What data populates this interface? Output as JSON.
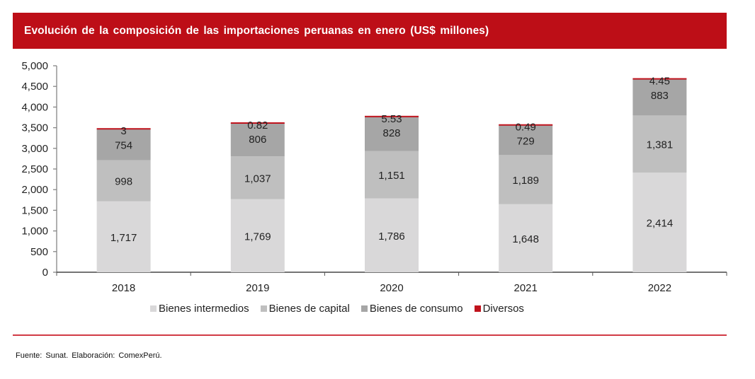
{
  "header": {
    "title": "Evolución de la composición de las importaciones peruanas en enero (US$ millones)"
  },
  "colors": {
    "header_bg": "#bd0e17",
    "bienes_intermedios": "#d9d8d9",
    "bienes_capital": "#bfbfbf",
    "bienes_consumo": "#a6a6a6",
    "diversos": "#c0121c",
    "footer_line": "#d13a45"
  },
  "chart_data": {
    "type": "bar",
    "stacked": true,
    "title": "Evolución de la composición de las importaciones peruanas en enero (US$ millones)",
    "xlabel": "",
    "ylabel": "",
    "categories": [
      "2018",
      "2019",
      "2020",
      "2021",
      "2022"
    ],
    "ylim": [
      0,
      5000
    ],
    "yticks": [
      0,
      500,
      1000,
      1500,
      2000,
      2500,
      3000,
      3500,
      4000,
      4500,
      5000
    ],
    "ytick_labels": [
      "0",
      "500",
      "1,000",
      "1,500",
      "2,000",
      "2,500",
      "3,000",
      "3,500",
      "4,000",
      "4,500",
      "5,000"
    ],
    "grid": false,
    "legend_position": "bottom",
    "series": [
      {
        "name": "Bienes intermedios",
        "values": [
          1717,
          1769,
          1786,
          1648,
          2414
        ],
        "labels": [
          "1,717",
          "1,769",
          "1,786",
          "1,648",
          "2,414"
        ]
      },
      {
        "name": "Bienes de capital",
        "values": [
          998,
          1037,
          1151,
          1189,
          1381
        ],
        "labels": [
          "998",
          "1,037",
          "1,151",
          "1,189",
          "1,381"
        ]
      },
      {
        "name": "Bienes de consumo",
        "values": [
          754,
          806,
          828,
          729,
          883
        ],
        "labels": [
          "754",
          "806",
          "828",
          "729",
          "883"
        ]
      },
      {
        "name": "Diversos",
        "values": [
          3,
          0.82,
          5.53,
          0.49,
          4.45
        ],
        "labels": [
          "3",
          "0.82",
          "5.53",
          "0.49",
          "4.45"
        ]
      }
    ]
  },
  "legend": {
    "items": [
      {
        "label": "Bienes intermedios"
      },
      {
        "label": "Bienes de capital"
      },
      {
        "label": "Bienes de consumo"
      },
      {
        "label": "Diversos"
      }
    ]
  },
  "footer": {
    "source": "Fuente: Sunat. Elaboración: ComexPerú."
  }
}
